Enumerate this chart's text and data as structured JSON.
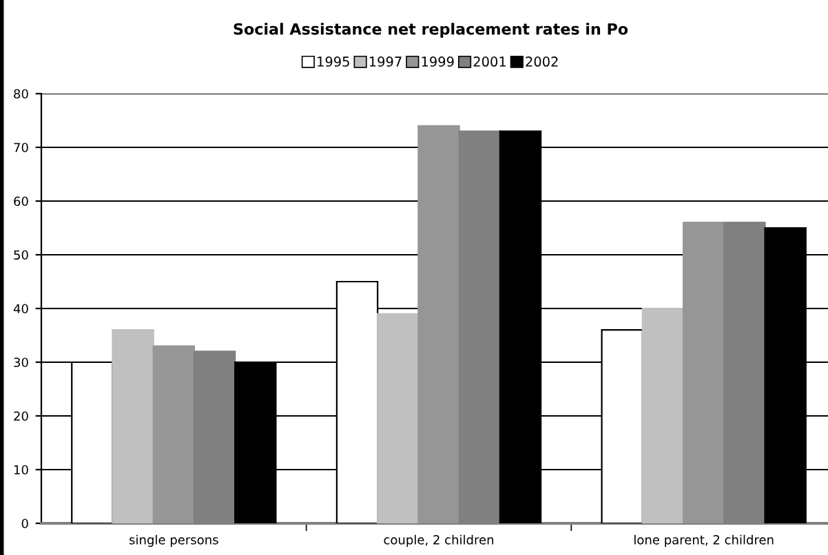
{
  "chart_data": {
    "type": "bar",
    "title": "Social Assistance net replacement rates in Po",
    "categories": [
      "single persons",
      "couple, 2 children",
      "lone parent, 2 children"
    ],
    "series": [
      {
        "name": "1995",
        "color": "#ffffff",
        "values": [
          30,
          45,
          36
        ]
      },
      {
        "name": "1997",
        "color": "#c0c0c0",
        "values": [
          36,
          39,
          40
        ]
      },
      {
        "name": "1999",
        "color": "#969696",
        "values": [
          33,
          74,
          56
        ]
      },
      {
        "name": "2001",
        "color": "#808080",
        "values": [
          32,
          73,
          56
        ]
      },
      {
        "name": "2002",
        "color": "#000000",
        "values": [
          30,
          73,
          55
        ]
      }
    ],
    "ylim": [
      0,
      80
    ],
    "yticks": [
      0,
      10,
      20,
      30,
      40,
      50,
      60,
      70,
      80
    ],
    "grid": "y",
    "legend": "top"
  }
}
